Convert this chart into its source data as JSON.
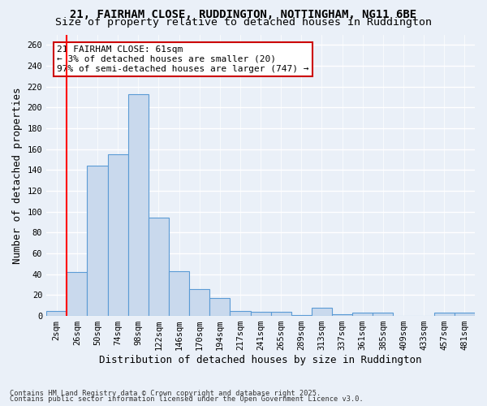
{
  "title_line1": "21, FAIRHAM CLOSE, RUDDINGTON, NOTTINGHAM, NG11 6BE",
  "title_line2": "Size of property relative to detached houses in Ruddington",
  "xlabel": "Distribution of detached houses by size in Ruddington",
  "ylabel": "Number of detached properties",
  "footnote1": "Contains HM Land Registry data © Crown copyright and database right 2025.",
  "footnote2": "Contains public sector information licensed under the Open Government Licence v3.0.",
  "annotation_title": "21 FAIRHAM CLOSE: 61sqm",
  "annotation_line2": "← 3% of detached houses are smaller (20)",
  "annotation_line3": "97% of semi-detached houses are larger (747) →",
  "bar_labels": [
    "2sqm",
    "26sqm",
    "50sqm",
    "74sqm",
    "98sqm",
    "122sqm",
    "146sqm",
    "170sqm",
    "194sqm",
    "217sqm",
    "241sqm",
    "265sqm",
    "289sqm",
    "313sqm",
    "337sqm",
    "361sqm",
    "385sqm",
    "409sqm",
    "433sqm",
    "457sqm",
    "481sqm"
  ],
  "bar_values": [
    5,
    42,
    144,
    155,
    213,
    94,
    43,
    26,
    17,
    5,
    4,
    4,
    1,
    8,
    2,
    3,
    3,
    0,
    0,
    3,
    3
  ],
  "bar_color": "#c9d9ed",
  "bar_edge_color": "#5b9bd5",
  "red_line_index": 1,
  "ylim": [
    0,
    270
  ],
  "yticks": [
    0,
    20,
    40,
    60,
    80,
    100,
    120,
    140,
    160,
    180,
    200,
    220,
    240,
    260
  ],
  "bg_color": "#eaf0f8",
  "plot_bg_color": "#eaf0f8",
  "grid_color": "#ffffff",
  "annotation_box_color": "#ffffff",
  "annotation_box_edge": "#cc0000",
  "title_fontsize": 10,
  "axis_label_fontsize": 9,
  "tick_fontsize": 7.5,
  "annotation_fontsize": 8
}
